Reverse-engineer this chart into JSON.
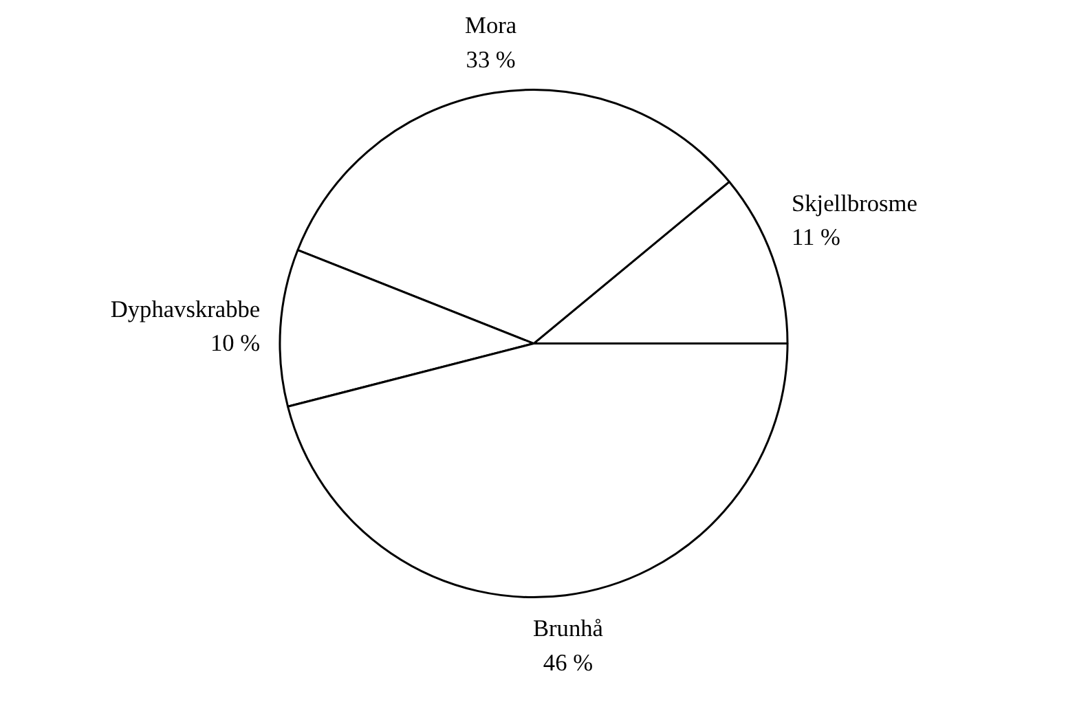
{
  "chart_data": {
    "type": "pie",
    "categories": [
      "Skjellbrosme",
      "Mora",
      "Dyphavskrabbe",
      "Brunhå"
    ],
    "values": [
      11,
      33,
      10,
      46
    ],
    "value_labels": [
      "11 %",
      "33 %",
      "10 %",
      "46 %"
    ],
    "colors": [
      "#ffffff",
      "#ffffff",
      "#ffffff",
      "#ffffff"
    ],
    "legend": false
  }
}
